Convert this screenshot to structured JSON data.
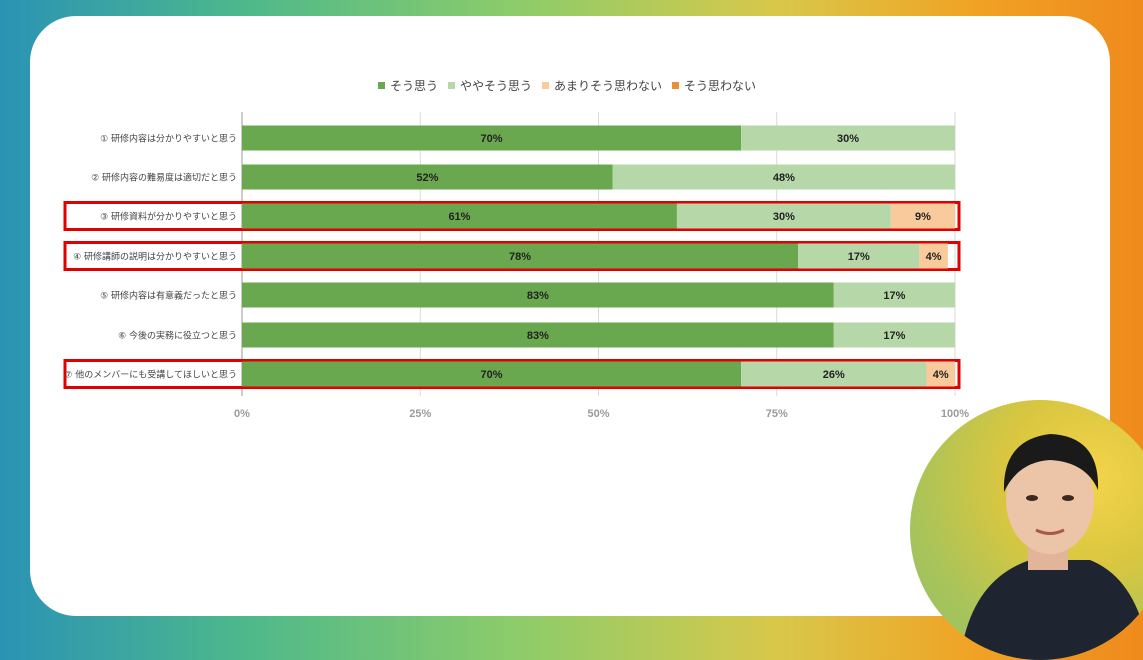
{
  "chart_data": {
    "type": "bar",
    "stacked": true,
    "orientation": "horizontal",
    "normalized_percent": true,
    "legend_position": "top",
    "xlim": [
      0,
      100
    ],
    "x_ticks": [
      "0%",
      "25%",
      "50%",
      "75%",
      "100%"
    ],
    "grid": true,
    "categories": [
      "① 研修内容は分かりやすいと思う",
      "② 研修内容の難易度は適切だと思う",
      "③ 研修資料が分かりやすいと思う",
      "④ 研修講師の説明は分かりやすいと思う",
      "⑤ 研修内容は有意義だったと思う",
      "⑥ 今後の実務に役立つと思う",
      "⑦ 他のメンバーにも受講してほしいと思う"
    ],
    "series": [
      {
        "name": "そう思う",
        "color": "#6aa84f",
        "values": [
          70,
          52,
          61,
          78,
          83,
          83,
          70
        ]
      },
      {
        "name": "ややそう思う",
        "color": "#b6d7a8",
        "values": [
          30,
          48,
          30,
          17,
          17,
          17,
          26
        ]
      },
      {
        "name": "あまりそう思わない",
        "color": "#f9cb9c",
        "values": [
          0,
          0,
          9,
          4,
          0,
          0,
          4
        ]
      },
      {
        "name": "そう思わない",
        "color": "#e69138",
        "values": [
          0,
          0,
          0,
          0,
          0,
          0,
          0
        ]
      }
    ],
    "highlighted_rows": [
      2,
      3,
      6
    ],
    "highlight_color": "#e00000"
  }
}
